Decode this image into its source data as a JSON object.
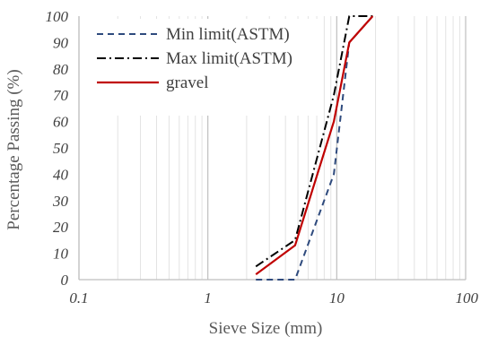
{
  "chart_data": {
    "type": "line",
    "xscale": "log",
    "xlim": [
      0.1,
      100
    ],
    "ylim": [
      0,
      100
    ],
    "xticks": [
      0.1,
      1,
      10,
      100
    ],
    "xtick_labels": [
      "0.1",
      "1",
      "10",
      "100"
    ],
    "yticks": [
      0,
      10,
      20,
      30,
      40,
      50,
      60,
      70,
      80,
      90,
      100
    ],
    "ytick_labels": [
      "0",
      "10",
      "20",
      "30",
      "40",
      "50",
      "60",
      "70",
      "80",
      "90",
      "100"
    ],
    "xlabel": "Sieve Size (mm)",
    "ylabel": "Percentage Passing (%)",
    "grid": "log-minor-vertical",
    "legend_position": "top-left",
    "series": [
      {
        "name": "Min limit(ASTM)",
        "color": "#2e4a7d",
        "dash": "dashed",
        "x": [
          2.36,
          4.75,
          9.5,
          12.5,
          19
        ],
        "y": [
          0,
          0,
          40,
          90,
          100
        ]
      },
      {
        "name": "Max limit(ASTM)",
        "color": "#000000",
        "dash": "dash-dot",
        "x": [
          2.36,
          4.75,
          9.5,
          12.5,
          19
        ],
        "y": [
          5,
          15,
          70,
          100,
          100
        ]
      },
      {
        "name": "gravel",
        "color": "#c00000",
        "dash": "solid",
        "x": [
          2.36,
          4.75,
          9.5,
          12.5,
          19
        ],
        "y": [
          2,
          13,
          60,
          90,
          100
        ]
      }
    ]
  }
}
